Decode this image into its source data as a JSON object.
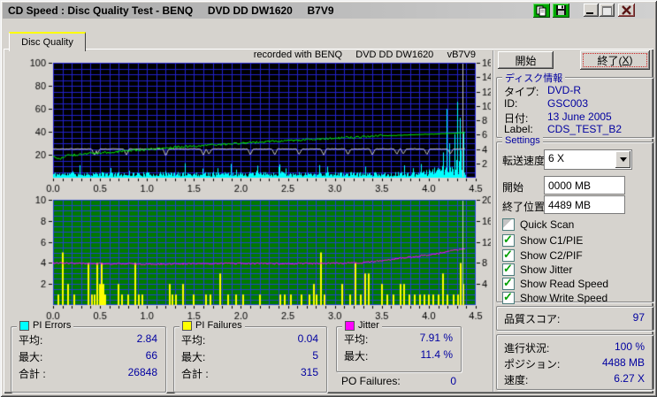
{
  "window": {
    "title": "CD Speed : Disc Quality Test - BENQ     DVD DD DW1620     B7V9"
  },
  "tabs": {
    "disc_quality": "Disc Quality"
  },
  "chart_header": "recorded with BENQ     DVD DD DW1620     vB7V9",
  "chart_data": [
    {
      "id": "quality-main",
      "type": "line",
      "title": "recorded with BENQ DVD DD DW1620 vB7V9",
      "bg": "#000000",
      "grid_color": "#2222cc",
      "x_axis": {
        "range": [
          0,
          4.5
        ],
        "grid_step": 0.1,
        "unit": "GB",
        "tick_values": [
          0,
          0.5,
          1,
          1.5,
          2,
          2.5,
          3,
          3.5,
          4,
          4.5
        ],
        "tick_labels": [
          "0.0",
          "0.5",
          "1.0",
          "1.5",
          "2.0",
          "2.5",
          "3.0",
          "3.5",
          "4.0",
          "4.5"
        ]
      },
      "y_left": {
        "range": [
          0,
          100
        ],
        "grid_step": 5,
        "ticks": [
          20,
          40,
          60,
          80,
          100
        ]
      },
      "y_right": {
        "range": [
          0,
          16
        ],
        "ticks": [
          2,
          4,
          6,
          8,
          10,
          12,
          14,
          16
        ]
      },
      "data_end_x": 4.39,
      "series": [
        {
          "name": "PI Errors",
          "color": "#00ffff",
          "axis": "left",
          "type": "noise-area",
          "base_min": 1,
          "base_max": 5,
          "spike_chance": 0.05,
          "spike_max": 13,
          "ramp_start": 3.9,
          "ramp_gain": 30,
          "spikes": [
            [
              4.15,
              22
            ],
            [
              4.19,
              60
            ],
            [
              4.22,
              30
            ],
            [
              4.27,
              38
            ],
            [
              4.3,
              66
            ],
            [
              4.33,
              52
            ],
            [
              4.355,
              58
            ],
            [
              4.37,
              40
            ]
          ]
        },
        {
          "name": "Read Speed",
          "color": "#c8c8c8",
          "axis": "right",
          "type": "flat-line",
          "value": 4,
          "noise": 0.05,
          "dip_width": 0.03,
          "dips": [
            [
              0.44,
              3.1
            ],
            [
              0.47,
              3.3
            ],
            [
              0.78,
              3.15
            ],
            [
              1.2,
              3.0
            ],
            [
              1.6,
              3.15
            ],
            [
              1.66,
              3.25
            ],
            [
              2.1,
              3.2
            ],
            [
              2.36,
              3.15
            ],
            [
              2.62,
              3.2
            ],
            [
              2.88,
              3.15
            ],
            [
              3.14,
              3.2
            ],
            [
              3.4,
              3.15
            ],
            [
              3.66,
              3.25
            ],
            [
              3.73,
              3.3
            ],
            [
              3.98,
              3.2
            ],
            [
              4.23,
              3.3
            ]
          ],
          "end_line_x": 4.36
        },
        {
          "name": "Write Speed",
          "color": "#00ee00",
          "axis": "right",
          "type": "noisy-line",
          "noise": 0.16,
          "keys": [
            [
              0,
              2.95
            ],
            [
              0.07,
              2.55
            ],
            [
              0.15,
              3.1
            ],
            [
              0.5,
              3.45
            ],
            [
              1,
              3.95
            ],
            [
              1.5,
              4.4
            ],
            [
              2,
              4.8
            ],
            [
              2.5,
              5.15
            ],
            [
              3,
              5.5
            ],
            [
              3.3,
              5.7
            ],
            [
              3.55,
              5.95
            ]
          ],
          "tail_keys": [
            [
              3.55,
              5.85
            ],
            [
              4,
              6.05
            ],
            [
              4.39,
              6.27
            ]
          ]
        }
      ]
    },
    {
      "id": "pif-jitter",
      "type": "bar",
      "bg": "#007a00",
      "grid_color": "#2244cc",
      "x_axis": {
        "range": [
          0,
          4.5
        ],
        "grid_step": 0.1,
        "unit": "GB",
        "tick_values": [
          0,
          0.5,
          1,
          1.5,
          2,
          2.5,
          3,
          3.5,
          4,
          4.5
        ],
        "tick_labels": [
          "0.0",
          "0.5",
          "1.0",
          "1.5",
          "2.0",
          "2.5",
          "3.0",
          "3.5",
          "4.0",
          "4.5"
        ]
      },
      "y_left": {
        "range": [
          0,
          10
        ],
        "grid_step": 0.5,
        "ticks": [
          2,
          4,
          6,
          8,
          10
        ]
      },
      "y_right": {
        "range": [
          0,
          20
        ],
        "ticks": [
          4,
          8,
          12,
          16,
          20
        ]
      },
      "data_end_x": 4.39,
      "series": [
        {
          "name": "PI Failures",
          "color": "#ffff00",
          "axis": "left",
          "type": "bars",
          "bars": [
            [
              0.06,
              1
            ],
            [
              0.1,
              5
            ],
            [
              0.16,
              2
            ],
            [
              0.23,
              1
            ],
            [
              0.38,
              4
            ],
            [
              0.41,
              1
            ],
            [
              0.44,
              1
            ],
            [
              0.47,
              4
            ],
            [
              0.5,
              2
            ],
            [
              0.52,
              4
            ],
            [
              0.54,
              2
            ],
            [
              0.56,
              1
            ],
            [
              0.7,
              2
            ],
            [
              0.73,
              1
            ],
            [
              0.8,
              1
            ],
            [
              0.88,
              4
            ],
            [
              0.91,
              1
            ],
            [
              0.95,
              1
            ],
            [
              1.24,
              2
            ],
            [
              1.27,
              1
            ],
            [
              1.31,
              1
            ],
            [
              1.38,
              2
            ],
            [
              1.5,
              1
            ],
            [
              1.63,
              1
            ],
            [
              1.68,
              1
            ],
            [
              1.78,
              3
            ],
            [
              1.86,
              1
            ],
            [
              1.95,
              1
            ],
            [
              2.02,
              1
            ],
            [
              2.2,
              1
            ],
            [
              2.42,
              1
            ],
            [
              2.47,
              1
            ],
            [
              2.53,
              1
            ],
            [
              2.65,
              1
            ],
            [
              2.73,
              1
            ],
            [
              2.78,
              2
            ],
            [
              2.81,
              1
            ],
            [
              2.85,
              5
            ],
            [
              2.89,
              1
            ],
            [
              3.08,
              2
            ],
            [
              3.16,
              1
            ],
            [
              3.22,
              4
            ],
            [
              3.28,
              1
            ],
            [
              3.32,
              3
            ],
            [
              3.36,
              3
            ],
            [
              3.5,
              2
            ],
            [
              3.56,
              1
            ],
            [
              3.62,
              1
            ],
            [
              3.7,
              2
            ],
            [
              3.74,
              2
            ],
            [
              3.79,
              1
            ],
            [
              3.85,
              1
            ],
            [
              3.91,
              1
            ],
            [
              3.95,
              1
            ],
            [
              4,
              1
            ],
            [
              4.05,
              1
            ],
            [
              4.1,
              1
            ],
            [
              4.15,
              3
            ],
            [
              4.2,
              1
            ],
            [
              4.26,
              1
            ],
            [
              4.31,
              1
            ],
            [
              4.34,
              4
            ],
            [
              4.37,
              2
            ]
          ]
        },
        {
          "name": "Jitter",
          "color": "#ff00ff",
          "axis": "right",
          "type": "noisy-line",
          "noise": 0.16,
          "keys": [
            [
              0,
              8
            ],
            [
              0.5,
              7.85
            ],
            [
              1,
              7.8
            ],
            [
              1.5,
              7.85
            ],
            [
              2,
              7.9
            ],
            [
              2.5,
              7.85
            ],
            [
              3,
              7.95
            ],
            [
              3.3,
              8.05
            ],
            [
              3.5,
              8.4
            ],
            [
              3.7,
              8.9
            ],
            [
              3.9,
              9.3
            ],
            [
              4.1,
              9.8
            ],
            [
              4.25,
              10.4
            ],
            [
              4.39,
              10.6
            ]
          ]
        },
        {
          "name": "End Marker",
          "color": "#cccccc",
          "axis": "right",
          "type": "vline",
          "x": 4.36
        }
      ]
    }
  ],
  "stats": {
    "pi_errors": {
      "title": "PI Errors",
      "legend_color": "#00ffff",
      "avg_label": "平均:",
      "avg": "2.84",
      "max_label": "最大:",
      "max": "66",
      "total_label": "合計 :",
      "total": "26848"
    },
    "pi_failures": {
      "title": "PI Failures",
      "legend_color": "#ffff00",
      "avg_label": "平均:",
      "avg": "0.04",
      "max_label": "最大:",
      "max": "5",
      "total_label": "合計 :",
      "total": "315"
    },
    "jitter": {
      "title": "Jitter",
      "legend_color": "#ff00ff",
      "avg_label": "平均:",
      "avg": "7.91 %",
      "max_label": "最大:",
      "max": "11.4 %"
    },
    "po_failures": {
      "label": "PO Failures:",
      "value": "0"
    }
  },
  "panel": {
    "start_button": "開始",
    "exit_button": {
      "pre": "終了(",
      "mnemonic": "X",
      "post": ")"
    },
    "disc_info": {
      "title": "ディスク情報",
      "type_label": "タイプ:",
      "type": "DVD-R",
      "id_label": "ID:",
      "id": "GSC003",
      "date_label": "日付:",
      "date": "13 June 2005",
      "label_label": "Label:",
      "label": "CDS_TEST_B2"
    },
    "settings": {
      "title": "Settings",
      "speed_label": "転送速度",
      "speed_value": "6 X",
      "start_label": "開始",
      "start_value": "0000 MB",
      "end_label": "終了位置",
      "end_value": "4489 MB",
      "checkboxes": [
        {
          "label": "Quick Scan",
          "checked": false
        },
        {
          "label": "Show C1/PIE",
          "checked": true
        },
        {
          "label": "Show C2/PIF",
          "checked": true
        },
        {
          "label": "Show Jitter",
          "checked": true
        },
        {
          "label": "Show Read Speed",
          "checked": true
        },
        {
          "label": "Show Write Speed",
          "checked": true
        }
      ]
    },
    "score": {
      "label": "品質スコア:",
      "value": "97"
    },
    "progress": {
      "progress_label": "進行状況:",
      "progress": "100 %",
      "position_label": "ポジション:",
      "position": "4488 MB",
      "speed_label": "速度:",
      "speed": "6.27 X"
    }
  },
  "colors": {
    "value_text": "#0000a0",
    "accent_tab": "#ffff00",
    "chart1_bg": "#000000",
    "chart2_bg": "#007a00",
    "grid_blue": "#2222cc"
  }
}
